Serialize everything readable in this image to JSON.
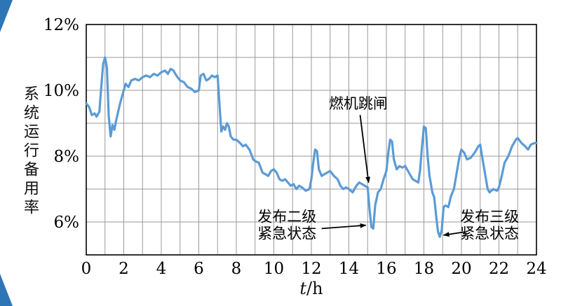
{
  "page": {
    "background": "#ffffff",
    "corner_decoration_color": "#2e75b6"
  },
  "chart_data": {
    "type": "line",
    "title": "",
    "xlabel": "t/h",
    "xlabel_var": "t",
    "xlabel_unit": "/h",
    "ylabel": "系统运行备用率",
    "xlim": [
      0,
      24
    ],
    "ylim": [
      5,
      12
    ],
    "x_ticks": [
      0,
      2,
      4,
      6,
      8,
      10,
      12,
      14,
      16,
      18,
      20,
      22,
      24
    ],
    "x_tick_labels": [
      "0",
      "2",
      "4",
      "6",
      "8",
      "10",
      "12",
      "14",
      "16",
      "18",
      "20",
      "22",
      "24"
    ],
    "y_ticks": [
      6,
      8,
      10,
      12
    ],
    "y_tick_labels": [
      "6%",
      "8%",
      "10%",
      "12%"
    ],
    "grid": {
      "x_every": 1,
      "y_lines": [
        6,
        7,
        8,
        9,
        10,
        11
      ],
      "color": "#9a9a9a"
    },
    "axis_color": "#000000",
    "series": [
      {
        "name": "系统运行备用率",
        "color": "#5b9bd5",
        "points": [
          [
            0,
            9.6
          ],
          [
            0.15,
            9.5
          ],
          [
            0.3,
            9.25
          ],
          [
            0.45,
            9.3
          ],
          [
            0.55,
            9.2
          ],
          [
            0.7,
            9.35
          ],
          [
            0.8,
            10.1
          ],
          [
            0.9,
            10.8
          ],
          [
            1.0,
            11.0
          ],
          [
            1.1,
            10.7
          ],
          [
            1.2,
            9.2
          ],
          [
            1.3,
            8.6
          ],
          [
            1.4,
            8.95
          ],
          [
            1.5,
            8.8
          ],
          [
            1.6,
            9.1
          ],
          [
            1.8,
            9.6
          ],
          [
            2.0,
            10.0
          ],
          [
            2.1,
            10.2
          ],
          [
            2.25,
            10.1
          ],
          [
            2.4,
            10.3
          ],
          [
            2.6,
            10.35
          ],
          [
            2.8,
            10.3
          ],
          [
            3.0,
            10.4
          ],
          [
            3.2,
            10.45
          ],
          [
            3.4,
            10.4
          ],
          [
            3.6,
            10.5
          ],
          [
            3.8,
            10.45
          ],
          [
            4.0,
            10.55
          ],
          [
            4.2,
            10.6
          ],
          [
            4.35,
            10.5
          ],
          [
            4.5,
            10.65
          ],
          [
            4.65,
            10.6
          ],
          [
            4.8,
            10.45
          ],
          [
            5.0,
            10.3
          ],
          [
            5.2,
            10.25
          ],
          [
            5.4,
            10.1
          ],
          [
            5.6,
            10.05
          ],
          [
            5.8,
            9.95
          ],
          [
            6.0,
            10.0
          ],
          [
            6.1,
            10.45
          ],
          [
            6.25,
            10.5
          ],
          [
            6.4,
            10.3
          ],
          [
            6.55,
            10.35
          ],
          [
            6.7,
            10.45
          ],
          [
            6.85,
            10.4
          ],
          [
            7.0,
            10.45
          ],
          [
            7.1,
            9.6
          ],
          [
            7.2,
            8.75
          ],
          [
            7.3,
            8.9
          ],
          [
            7.4,
            8.8
          ],
          [
            7.5,
            9.0
          ],
          [
            7.6,
            8.9
          ],
          [
            7.7,
            8.6
          ],
          [
            7.85,
            8.5
          ],
          [
            8.0,
            8.5
          ],
          [
            8.2,
            8.4
          ],
          [
            8.35,
            8.3
          ],
          [
            8.5,
            8.35
          ],
          [
            8.7,
            8.2
          ],
          [
            8.9,
            7.9
          ],
          [
            9.0,
            7.85
          ],
          [
            9.2,
            7.8
          ],
          [
            9.4,
            7.5
          ],
          [
            9.55,
            7.45
          ],
          [
            9.7,
            7.4
          ],
          [
            9.85,
            7.55
          ],
          [
            10.0,
            7.6
          ],
          [
            10.15,
            7.5
          ],
          [
            10.3,
            7.3
          ],
          [
            10.45,
            7.25
          ],
          [
            10.6,
            7.3
          ],
          [
            10.75,
            7.2
          ],
          [
            10.9,
            7.1
          ],
          [
            11.05,
            7.15
          ],
          [
            11.2,
            7.0
          ],
          [
            11.35,
            7.1
          ],
          [
            11.5,
            7.05
          ],
          [
            11.7,
            6.95
          ],
          [
            11.9,
            7.0
          ],
          [
            12.0,
            7.3
          ],
          [
            12.1,
            7.8
          ],
          [
            12.2,
            8.2
          ],
          [
            12.3,
            8.15
          ],
          [
            12.4,
            7.6
          ],
          [
            12.55,
            7.4
          ],
          [
            12.7,
            7.45
          ],
          [
            12.85,
            7.5
          ],
          [
            13.0,
            7.55
          ],
          [
            13.2,
            7.4
          ],
          [
            13.4,
            7.3
          ],
          [
            13.55,
            7.1
          ],
          [
            13.7,
            7.0
          ],
          [
            13.85,
            7.05
          ],
          [
            14.0,
            7.0
          ],
          [
            14.2,
            6.9
          ],
          [
            14.4,
            7.1
          ],
          [
            14.55,
            7.2
          ],
          [
            14.7,
            7.15
          ],
          [
            14.85,
            7.1
          ],
          [
            15.0,
            7.05
          ],
          [
            15.1,
            6.4
          ],
          [
            15.2,
            5.85
          ],
          [
            15.3,
            5.8
          ],
          [
            15.4,
            6.5
          ],
          [
            15.55,
            6.9
          ],
          [
            15.7,
            7.0
          ],
          [
            15.85,
            7.3
          ],
          [
            16.0,
            7.55
          ],
          [
            16.1,
            8.1
          ],
          [
            16.2,
            8.5
          ],
          [
            16.3,
            8.45
          ],
          [
            16.4,
            7.9
          ],
          [
            16.55,
            7.6
          ],
          [
            16.7,
            7.7
          ],
          [
            16.85,
            7.65
          ],
          [
            17.0,
            7.7
          ],
          [
            17.2,
            7.5
          ],
          [
            17.4,
            7.3
          ],
          [
            17.55,
            7.25
          ],
          [
            17.7,
            7.2
          ],
          [
            17.8,
            7.6
          ],
          [
            17.9,
            8.3
          ],
          [
            18.0,
            8.9
          ],
          [
            18.1,
            8.85
          ],
          [
            18.2,
            8.0
          ],
          [
            18.3,
            7.4
          ],
          [
            18.45,
            6.9
          ],
          [
            18.55,
            6.75
          ],
          [
            18.65,
            6.2
          ],
          [
            18.75,
            5.7
          ],
          [
            18.85,
            5.55
          ],
          [
            18.95,
            5.75
          ],
          [
            19.05,
            6.45
          ],
          [
            19.15,
            6.5
          ],
          [
            19.3,
            6.45
          ],
          [
            19.45,
            6.8
          ],
          [
            19.6,
            7.0
          ],
          [
            19.75,
            7.5
          ],
          [
            19.9,
            8.0
          ],
          [
            20.0,
            8.2
          ],
          [
            20.15,
            8.1
          ],
          [
            20.3,
            7.9
          ],
          [
            20.5,
            7.95
          ],
          [
            20.7,
            8.1
          ],
          [
            20.9,
            8.3
          ],
          [
            21.0,
            8.35
          ],
          [
            21.1,
            8.0
          ],
          [
            21.25,
            7.5
          ],
          [
            21.4,
            7.0
          ],
          [
            21.5,
            6.9
          ],
          [
            21.7,
            7.0
          ],
          [
            21.9,
            6.95
          ],
          [
            22.0,
            7.05
          ],
          [
            22.15,
            7.4
          ],
          [
            22.3,
            7.8
          ],
          [
            22.5,
            8.0
          ],
          [
            22.7,
            8.3
          ],
          [
            22.9,
            8.5
          ],
          [
            23.0,
            8.55
          ],
          [
            23.2,
            8.4
          ],
          [
            23.4,
            8.3
          ],
          [
            23.55,
            8.2
          ],
          [
            23.7,
            8.35
          ],
          [
            23.9,
            8.4
          ],
          [
            24.0,
            8.4
          ]
        ]
      }
    ],
    "annotations": [
      {
        "id": "gas-turbine-trip",
        "lines": [
          "燃机跳闸"
        ],
        "tx": 14.5,
        "ty": 9.6,
        "arrow": {
          "x1": 14.6,
          "y1": 9.25,
          "x2": 15.05,
          "y2": 7.2
        }
      },
      {
        "id": "level2-emergency",
        "lines": [
          "发布二级",
          "紧急状态"
        ],
        "tx": 10.7,
        "ty": 5.9,
        "arrow": {
          "x1": 12.55,
          "y1": 5.8,
          "x2": 14.9,
          "y2": 5.9
        }
      },
      {
        "id": "level3-emergency",
        "lines": [
          "发布三级",
          "紧急状态"
        ],
        "tx": 21.5,
        "ty": 5.9,
        "arrow": {
          "x1": 20.2,
          "y1": 5.7,
          "x2": 19.05,
          "y2": 5.6
        }
      }
    ]
  }
}
